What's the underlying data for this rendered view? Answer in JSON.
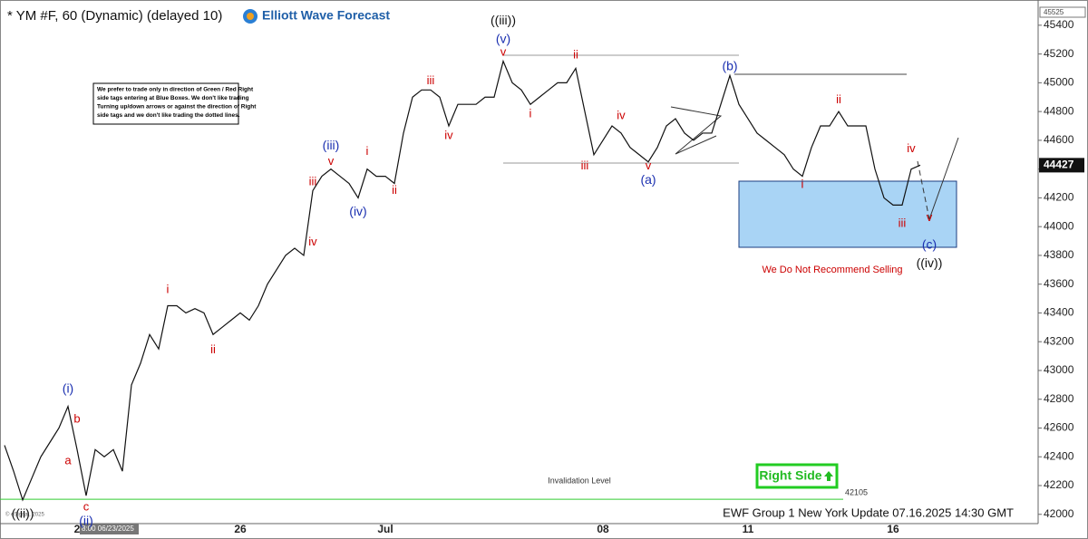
{
  "chart_data": {
    "type": "line",
    "title": "* YM #F, 60 (Dynamic) (delayed 10)",
    "brand": "Elliott Wave Forecast",
    "note": [
      "We prefer to trade only in direction of Green / Red Right",
      "side tags entering at Blue Boxes. We don't like trading",
      "Turning up/down arrows or against the direction of Right",
      "side tags and we don't like trading the dotted lines."
    ],
    "warning": "We Do Not Recommend Selling",
    "invalidation": {
      "label": "Invalidation Level",
      "value": 42105
    },
    "right_side": "Right Side",
    "footer": "EWF Group 1 New York Update 07.16.2025 14:30 GMT",
    "copyright": "© eSignal, 2025",
    "cursor_label": "8:00 06/23/2025",
    "last_price": 44427,
    "categories": [
      null,
      null,
      null,
      null,
      null,
      null,
      null,
      null,
      "2",
      null,
      null,
      null,
      null,
      null,
      null,
      null,
      null,
      null,
      null,
      null,
      null,
      null,
      null,
      null,
      null,
      null,
      "26",
      null,
      null,
      null,
      null,
      null,
      null,
      null,
      null,
      null,
      null,
      null,
      null,
      null,
      null,
      null,
      "Jul",
      null,
      null,
      null,
      null,
      null,
      null,
      null,
      null,
      null,
      null,
      null,
      null,
      null,
      null,
      null,
      null,
      null,
      null,
      null,
      null,
      null,
      null,
      null,
      "08",
      null,
      null,
      null,
      null,
      null,
      null,
      null,
      null,
      null,
      null,
      null,
      null,
      null,
      null,
      null,
      "11",
      null,
      null,
      null,
      null,
      null,
      null,
      null,
      null,
      null,
      null,
      null,
      null,
      null,
      null,
      null,
      "16",
      null,
      null,
      null
    ],
    "series": [
      {
        "name": "YM #F",
        "color": "#111111",
        "values": [
          42480,
          42300,
          42100,
          42250,
          42400,
          42500,
          42600,
          42750,
          42450,
          42130,
          42450,
          42400,
          42450,
          42300,
          42900,
          43050,
          43250,
          43150,
          43450,
          43450,
          43400,
          43430,
          43400,
          43250,
          43300,
          43350,
          43400,
          43350,
          43450,
          43600,
          43700,
          43800,
          43850,
          43800,
          44250,
          44350,
          44400,
          44350,
          44300,
          44200,
          44400,
          44350,
          44350,
          44300,
          44650,
          44900,
          44950,
          44950,
          44900,
          44700,
          44850,
          44850,
          44850,
          44900,
          44900,
          45150,
          45000,
          44950,
          44850,
          44900,
          44950,
          45000,
          45000,
          45100,
          44800,
          44500,
          44600,
          44700,
          44650,
          44550,
          44500,
          44450,
          44550,
          44700,
          44750,
          44650,
          44600,
          44650,
          44650,
          44850,
          45050,
          44850,
          44750,
          44650,
          44600,
          44550,
          44500,
          44400,
          44350,
          44550,
          44700,
          44700,
          44800,
          44700,
          44700,
          44700,
          44400,
          44200,
          44150,
          44150,
          44400,
          44427
        ]
      }
    ],
    "annotations": [
      {
        "text": "((iii))",
        "i": 55,
        "y": 45430,
        "color": "#111111"
      },
      {
        "text": "(v)",
        "i": 55,
        "y": 45300,
        "color": "#1a2fb0"
      },
      {
        "text": "v",
        "i": 55,
        "y": 45210,
        "color": "#cc0000"
      },
      {
        "text": "(i)",
        "i": 7,
        "y": 42870,
        "color": "#1a2fb0"
      },
      {
        "text": "b",
        "i": 8,
        "y": 42660,
        "color": "#cc0000"
      },
      {
        "text": "a",
        "i": 7,
        "y": 42370,
        "color": "#cc0000"
      },
      {
        "text": "c",
        "i": 9,
        "y": 42050,
        "color": "#cc0000"
      },
      {
        "text": "(ii)",
        "i": 9,
        "y": 41950,
        "color": "#1a2fb0"
      },
      {
        "text": "((ii))",
        "i": 2,
        "y": 42000,
        "color": "#111111"
      },
      {
        "text": "i",
        "i": 18,
        "y": 43560,
        "color": "#cc0000"
      },
      {
        "text": "ii",
        "i": 23,
        "y": 43140,
        "color": "#cc0000"
      },
      {
        "text": "iii",
        "i": 34,
        "y": 44310,
        "color": "#cc0000"
      },
      {
        "text": "iv",
        "i": 34,
        "y": 43890,
        "color": "#cc0000"
      },
      {
        "text": "(iii)",
        "i": 36,
        "y": 44560,
        "color": "#1a2fb0"
      },
      {
        "text": "v",
        "i": 36,
        "y": 44450,
        "color": "#cc0000"
      },
      {
        "text": "i",
        "i": 40,
        "y": 44520,
        "color": "#cc0000"
      },
      {
        "text": "(iv)",
        "i": 39,
        "y": 44100,
        "color": "#1a2fb0"
      },
      {
        "text": "ii",
        "i": 43,
        "y": 44250,
        "color": "#cc0000"
      },
      {
        "text": "iii",
        "i": 47,
        "y": 45010,
        "color": "#cc0000"
      },
      {
        "text": "iv",
        "i": 49,
        "y": 44630,
        "color": "#cc0000"
      },
      {
        "text": "i",
        "i": 58,
        "y": 44780,
        "color": "#cc0000"
      },
      {
        "text": "ii",
        "i": 63,
        "y": 45190,
        "color": "#cc0000"
      },
      {
        "text": "iii",
        "i": 64,
        "y": 44420,
        "color": "#cc0000"
      },
      {
        "text": "iv",
        "i": 68,
        "y": 44770,
        "color": "#cc0000"
      },
      {
        "text": "v",
        "i": 71,
        "y": 44420,
        "color": "#cc0000"
      },
      {
        "text": "(a)",
        "i": 71,
        "y": 44320,
        "color": "#1a2fb0"
      },
      {
        "text": "(b)",
        "i": 80,
        "y": 45110,
        "color": "#1a2fb0"
      },
      {
        "text": "i",
        "i": 88,
        "y": 44290,
        "color": "#cc0000"
      },
      {
        "text": "ii",
        "i": 92,
        "y": 44880,
        "color": "#cc0000"
      },
      {
        "text": "iii",
        "i": 99,
        "y": 44020,
        "color": "#cc0000"
      },
      {
        "text": "iv",
        "i": 100,
        "y": 44540,
        "color": "#cc0000"
      },
      {
        "text": "v",
        "i": 102,
        "y": 44060,
        "color": "#cc0000"
      },
      {
        "text": "(c)",
        "i": 102,
        "y": 43870,
        "color": "#1a2fb0"
      },
      {
        "text": "((iv))",
        "i": 102,
        "y": 43740,
        "color": "#111111"
      }
    ],
    "ylim": [
      41860,
      45525
    ],
    "yticks": [
      42000,
      42200,
      42400,
      42600,
      42800,
      43000,
      43200,
      43400,
      43600,
      43800,
      44000,
      44200,
      44400,
      44600,
      44800,
      45000,
      45200,
      45400
    ]
  }
}
